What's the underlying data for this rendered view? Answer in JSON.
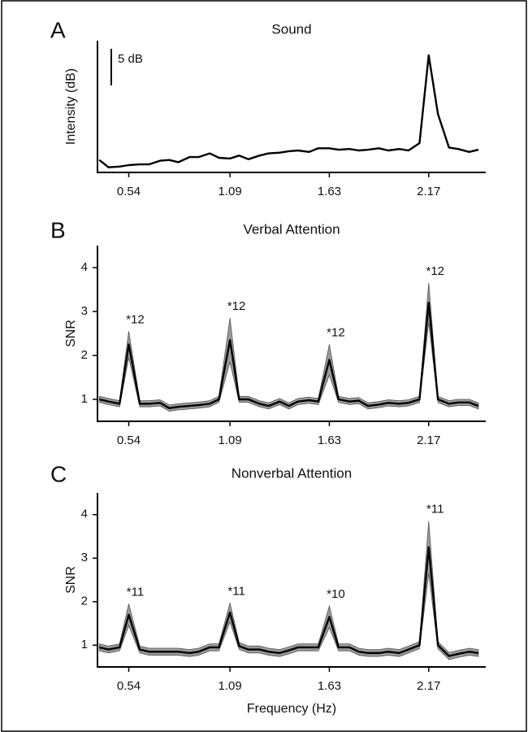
{
  "chart_data": [
    {
      "type": "line",
      "panel": "A",
      "title": "Sound",
      "ylabel": "Intensity (dB)",
      "x": [
        0.38,
        0.43,
        0.49,
        0.54,
        0.6,
        0.65,
        0.71,
        0.76,
        0.81,
        0.87,
        0.92,
        0.98,
        1.03,
        1.09,
        1.14,
        1.19,
        1.25,
        1.3,
        1.36,
        1.41,
        1.46,
        1.52,
        1.57,
        1.63,
        1.68,
        1.74,
        1.79,
        1.84,
        1.9,
        1.95,
        2.01,
        2.06,
        2.12,
        2.17,
        2.22,
        2.28,
        2.33,
        2.39,
        2.44
      ],
      "xlim": [
        0.37,
        2.48
      ],
      "xticks": [
        0.54,
        1.09,
        1.63,
        2.17
      ],
      "ylim": [
        0,
        18
      ],
      "scale_bar": {
        "value": 5,
        "label": "5 dB"
      },
      "series": [
        {
          "color": "#000000",
          "values": [
            1.7,
            0.7,
            0.8,
            1.0,
            1.1,
            1.1,
            1.6,
            1.7,
            1.4,
            2.1,
            2.1,
            2.6,
            2.0,
            1.9,
            2.3,
            1.8,
            2.3,
            2.6,
            2.7,
            2.9,
            3.0,
            2.8,
            3.3,
            3.3,
            3.1,
            3.2,
            3.0,
            3.1,
            3.3,
            3.0,
            3.2,
            3.0,
            4.0,
            16.0,
            8.0,
            3.4,
            3.2,
            2.8,
            3.1
          ]
        }
      ]
    },
    {
      "type": "line",
      "panel": "B",
      "title": "Verbal Attention",
      "ylabel": "SNR",
      "x": [
        0.38,
        0.43,
        0.49,
        0.54,
        0.6,
        0.65,
        0.71,
        0.76,
        0.81,
        0.87,
        0.92,
        0.98,
        1.03,
        1.09,
        1.14,
        1.19,
        1.25,
        1.3,
        1.36,
        1.41,
        1.46,
        1.52,
        1.57,
        1.63,
        1.68,
        1.74,
        1.79,
        1.84,
        1.9,
        1.95,
        2.01,
        2.06,
        2.12,
        2.17,
        2.22,
        2.28,
        2.33,
        2.39,
        2.44
      ],
      "xlim": [
        0.37,
        2.48
      ],
      "xticks": [
        0.54,
        1.09,
        1.63,
        2.17
      ],
      "ylim": [
        0.5,
        4.5
      ],
      "yticks": [
        1,
        2,
        3,
        4
      ],
      "series": [
        {
          "color": "#000000",
          "band_color": "#9a9a9a",
          "values": [
            1.0,
            0.95,
            0.9,
            2.25,
            0.9,
            0.9,
            0.92,
            0.8,
            0.83,
            0.85,
            0.87,
            0.9,
            1.0,
            2.35,
            1.0,
            1.0,
            0.9,
            0.85,
            0.95,
            0.85,
            0.95,
            0.98,
            0.95,
            1.9,
            1.0,
            0.95,
            0.97,
            0.85,
            0.88,
            0.92,
            0.9,
            0.92,
            1.0,
            3.2,
            1.0,
            0.9,
            0.93,
            0.93,
            0.85
          ],
          "errors": [
            0.07,
            0.07,
            0.07,
            0.3,
            0.07,
            0.07,
            0.07,
            0.07,
            0.07,
            0.07,
            0.07,
            0.07,
            0.07,
            0.5,
            0.07,
            0.07,
            0.07,
            0.07,
            0.07,
            0.07,
            0.07,
            0.07,
            0.07,
            0.35,
            0.07,
            0.07,
            0.07,
            0.07,
            0.07,
            0.07,
            0.07,
            0.07,
            0.07,
            0.45,
            0.07,
            0.07,
            0.07,
            0.07,
            0.07
          ]
        }
      ],
      "annotations": [
        {
          "x": 0.54,
          "text": "*12"
        },
        {
          "x": 1.09,
          "text": "*12"
        },
        {
          "x": 1.63,
          "text": "*12"
        },
        {
          "x": 2.17,
          "text": "*12"
        }
      ]
    },
    {
      "type": "line",
      "panel": "C",
      "title": "Nonverbal Attention",
      "ylabel": "SNR",
      "xlabel": "Frequency (Hz)",
      "x": [
        0.38,
        0.43,
        0.49,
        0.54,
        0.6,
        0.65,
        0.71,
        0.76,
        0.81,
        0.87,
        0.92,
        0.98,
        1.03,
        1.09,
        1.14,
        1.19,
        1.25,
        1.3,
        1.36,
        1.41,
        1.46,
        1.52,
        1.57,
        1.63,
        1.68,
        1.74,
        1.79,
        1.84,
        1.9,
        1.95,
        2.01,
        2.06,
        2.12,
        2.17,
        2.22,
        2.28,
        2.33,
        2.39,
        2.44
      ],
      "xlim": [
        0.37,
        2.48
      ],
      "xticks": [
        0.54,
        1.09,
        1.63,
        2.17
      ],
      "ylim": [
        0.5,
        4.5
      ],
      "yticks": [
        1,
        2,
        3,
        4
      ],
      "series": [
        {
          "color": "#000000",
          "band_color": "#9a9a9a",
          "values": [
            0.95,
            0.9,
            0.95,
            1.7,
            0.9,
            0.85,
            0.85,
            0.85,
            0.85,
            0.82,
            0.85,
            0.95,
            0.95,
            1.75,
            0.98,
            0.9,
            0.9,
            0.85,
            0.82,
            0.88,
            0.95,
            0.95,
            0.95,
            1.65,
            0.95,
            0.95,
            0.85,
            0.82,
            0.82,
            0.85,
            0.82,
            0.9,
            1.0,
            3.25,
            1.0,
            0.75,
            0.8,
            0.85,
            0.82
          ],
          "errors": [
            0.08,
            0.08,
            0.08,
            0.25,
            0.08,
            0.08,
            0.08,
            0.08,
            0.08,
            0.08,
            0.08,
            0.08,
            0.08,
            0.22,
            0.08,
            0.08,
            0.08,
            0.08,
            0.08,
            0.08,
            0.08,
            0.08,
            0.08,
            0.25,
            0.08,
            0.08,
            0.08,
            0.08,
            0.08,
            0.08,
            0.08,
            0.08,
            0.08,
            0.6,
            0.08,
            0.08,
            0.08,
            0.08,
            0.08
          ]
        }
      ],
      "annotations": [
        {
          "x": 0.54,
          "text": "*11"
        },
        {
          "x": 1.09,
          "text": "*11"
        },
        {
          "x": 1.63,
          "text": "*10"
        },
        {
          "x": 2.17,
          "text": "*11"
        }
      ]
    }
  ]
}
